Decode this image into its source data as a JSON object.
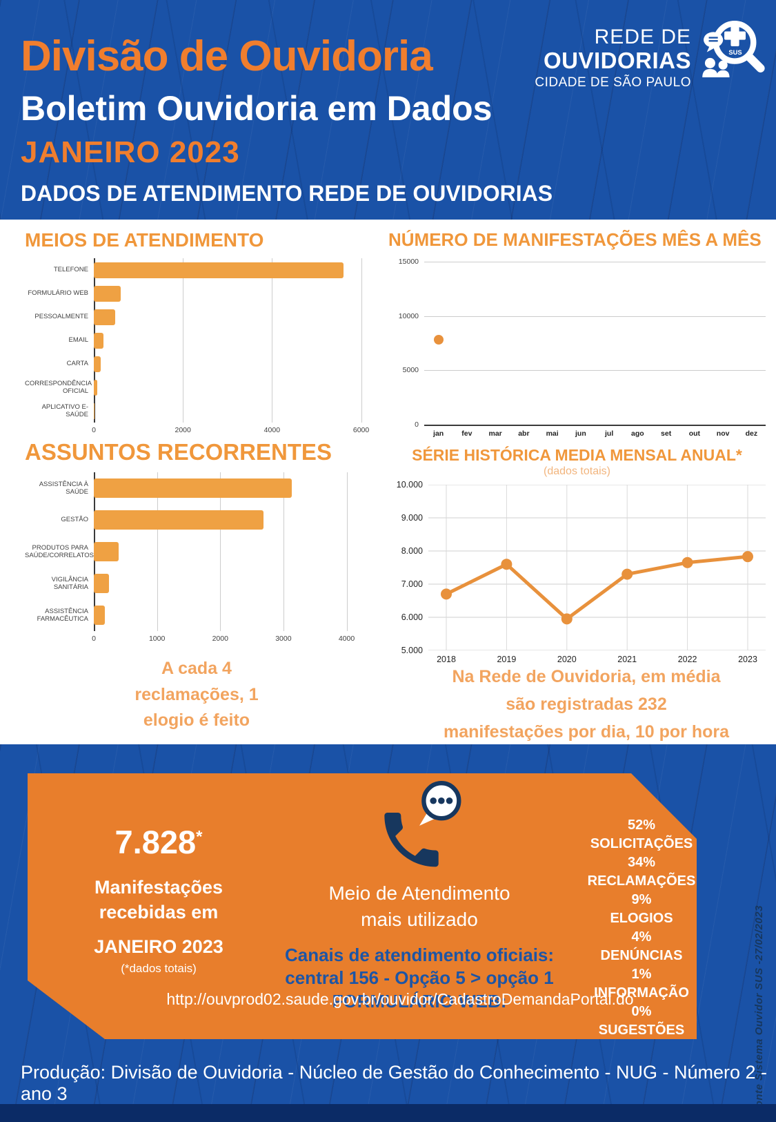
{
  "header": {
    "title": "Divisão de Ouvidoria",
    "subtitle": "Boletim Ouvidoria em Dados",
    "period": "JANEIRO 2023",
    "band": "DADOS DE ATENDIMENTO REDE DE OUVIDORIAS",
    "logo": {
      "line1": "REDE DE",
      "line2": "OUVIDORIAS",
      "line3": "CIDADE DE SÃO PAULO",
      "sus": "SUS"
    }
  },
  "colors": {
    "background_blue": "#1A52A7",
    "title_orange": "#F07E2E",
    "heading_orange": "#F0973B",
    "bar_orange": "#EFA143",
    "accent_orange": "#E8913C",
    "callout_orange": "#F2A45F",
    "box_orange": "#E87E2C",
    "navy": "#17375E",
    "link_blue": "#1D55A5",
    "grid_gray": "#CCCCCC",
    "tick_text": "#3F3F3F"
  },
  "chart_data": [
    {
      "type": "bar",
      "orientation": "horizontal",
      "title": "MEIOS DE ATENDIMENTO",
      "categories": [
        "TELEFONE",
        "FORMULÁRIO WEB",
        "PESSOALMENTE",
        "EMAIL",
        "CARTA",
        "CORRESPONDÊNCIA OFICIAL",
        "APLICATIVO E-SAÚDE"
      ],
      "values": [
        5600,
        610,
        480,
        220,
        150,
        80,
        10
      ],
      "xlim": [
        0,
        6100
      ],
      "xticks": [
        0,
        2000,
        4000,
        6000
      ],
      "grid": true
    },
    {
      "type": "scatter",
      "title": "NÚMERO DE MANIFESTAÇÕES MÊS A MÊS",
      "categories": [
        "jan",
        "fev",
        "mar",
        "abr",
        "mai",
        "jun",
        "jul",
        "ago",
        "set",
        "out",
        "nov",
        "dez"
      ],
      "values": [
        7828,
        null,
        null,
        null,
        null,
        null,
        null,
        null,
        null,
        null,
        null,
        null
      ],
      "ylim": [
        0,
        15000
      ],
      "yticks": [
        {
          "value": 15000,
          "label": "15000"
        },
        {
          "value": 10000,
          "label": "10000"
        },
        {
          "value": 5000,
          "label": "5000"
        },
        {
          "value": 0,
          "label": "0"
        }
      ],
      "grid": true
    },
    {
      "type": "bar",
      "orientation": "horizontal",
      "title": "ASSUNTOS RECORRENTES",
      "categories": [
        "ASSISTÊNCIA À SAÚDE",
        "GESTÃO",
        "PRODUTOS PARA SAÚDE/CORRELATOS",
        "VIGILÂNCIA SANITÁRIA",
        "ASSISTÊNCIA FARMACÊUTICA"
      ],
      "values": [
        3130,
        2690,
        390,
        240,
        180
      ],
      "xlim": [
        0,
        4300
      ],
      "xticks": [
        0,
        1000,
        2000,
        3000,
        4000
      ],
      "grid": true
    },
    {
      "type": "line",
      "title": "SÉRIE HISTÓRICA MEDIA MENSAL ANUAL*",
      "subtitle": "(dados totais)",
      "categories": [
        "2018",
        "2019",
        "2020",
        "2021",
        "2022",
        "2023"
      ],
      "values": [
        6700,
        7600,
        5950,
        7300,
        7650,
        7830
      ],
      "ylim": [
        5000,
        10000
      ],
      "yticks": [
        {
          "value": 10000,
          "label": "10.000"
        },
        {
          "value": 9000,
          "label": "9.000"
        },
        {
          "value": 8000,
          "label": "8.000"
        },
        {
          "value": 7000,
          "label": "7.000"
        },
        {
          "value": 6000,
          "label": "6.000"
        },
        {
          "value": 5000,
          "label": "5.000"
        }
      ],
      "grid": true
    }
  ],
  "callouts": {
    "left_lines": [
      "A cada 4",
      "reclamações, 1",
      "elogio é feito"
    ],
    "right_lines": [
      "Na Rede de Ouvidoria, em média",
      "são registradas 232",
      "manifestações por dia, 10 por hora"
    ]
  },
  "footer_box": {
    "big_number": "7.828",
    "big_number_note": "*",
    "received_lines": [
      "Manifestações",
      "recebidas em"
    ],
    "received_period": "JANEIRO 2023",
    "received_note": "(*dados totais)",
    "icon_caption_lines": [
      "Meio de Atendimento",
      "mais utilizado"
    ],
    "channels_lines": [
      "Canais de atendimento oficiais:",
      "central 156 - Opção 5 > opção 1",
      "FORMULÁRIO WEB:"
    ],
    "url": "http://ouvprod02.saude.gov.br/ouvidor/CadastroDemandaPortal.do",
    "stats": [
      {
        "pct": "52%",
        "label": "SOLICITAÇÕES"
      },
      {
        "pct": "34%",
        "label": "RECLAMAÇÕES"
      },
      {
        "pct": "9%",
        "label": "ELOGIOS"
      },
      {
        "pct": "4%",
        "label": "DENÚNCIAS"
      },
      {
        "pct": "1%",
        "label": "INFORMAÇÃO"
      },
      {
        "pct": "0%",
        "label": "SUGESTÕES"
      }
    ]
  },
  "source_note": "Fonte Sistema Ouvidor SUS -27/02/2023",
  "production_note": "Produção: Divisão de Ouvidoria - Núcleo de Gestão do Conhecimento - NUG - Número 2 - ano 3"
}
